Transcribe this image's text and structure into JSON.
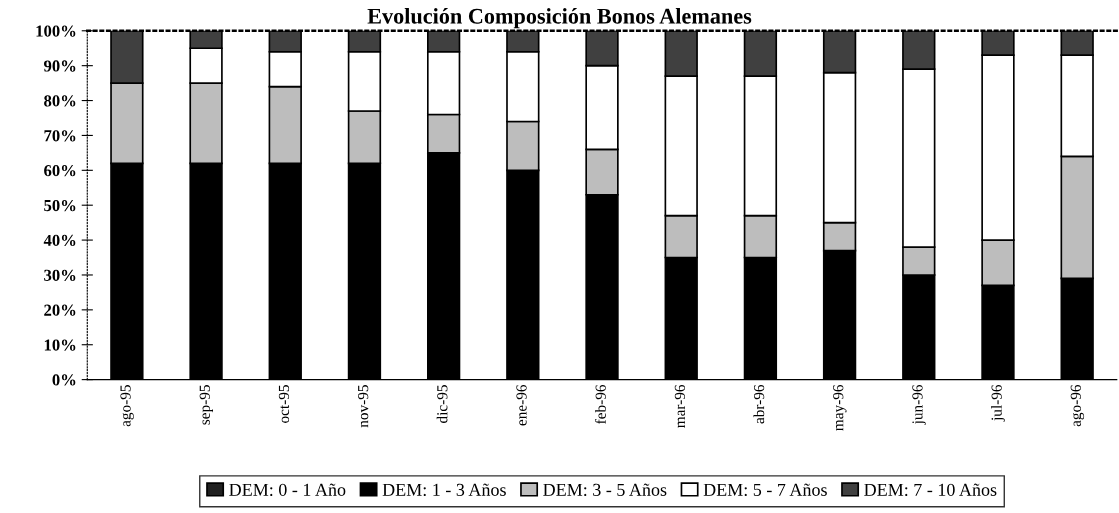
{
  "chart_data": {
    "type": "bar",
    "stacked": true,
    "title": "Evolución Composición Bonos Alemanes",
    "categories": [
      "ago-95",
      "sep-95",
      "oct-95",
      "nov-95",
      "dic-95",
      "ene-96",
      "feb-96",
      "mar-96",
      "abr-96",
      "may-96",
      "jun-96",
      "jul-96",
      "ago-96"
    ],
    "series": [
      {
        "name": "DEM: 0 - 1 Año",
        "color": "#202020",
        "values": [
          0,
          0,
          0,
          0,
          0,
          0,
          0,
          0,
          0,
          0,
          0,
          0,
          0
        ]
      },
      {
        "name": "DEM: 1 - 3 Años",
        "color": "#000000",
        "values": [
          62,
          62,
          62,
          62,
          65,
          60,
          53,
          35,
          35,
          37,
          30,
          27,
          29
        ]
      },
      {
        "name": "DEM: 3 - 5 Años",
        "color": "#bdbdbd",
        "values": [
          23,
          23,
          22,
          15,
          11,
          14,
          13,
          12,
          12,
          8,
          8,
          13,
          35
        ]
      },
      {
        "name": "DEM: 5 - 7 Años",
        "color": "#ffffff",
        "values": [
          0,
          10,
          10,
          17,
          18,
          20,
          24,
          40,
          40,
          43,
          51,
          53,
          29
        ]
      },
      {
        "name": "DEM: 7 - 10 Años",
        "color": "#404040",
        "values": [
          15,
          5,
          6,
          6,
          6,
          6,
          10,
          13,
          13,
          12,
          11,
          7,
          7
        ]
      }
    ],
    "ylim": [
      0,
      100
    ],
    "yticks": [
      {
        "value": 0,
        "label": "0%"
      },
      {
        "value": 10,
        "label": "10%"
      },
      {
        "value": 20,
        "label": "20%"
      },
      {
        "value": 30,
        "label": "30%"
      },
      {
        "value": 40,
        "label": "40%"
      },
      {
        "value": 50,
        "label": "50%"
      },
      {
        "value": 60,
        "label": "60%"
      },
      {
        "value": 70,
        "label": "70%"
      },
      {
        "value": 80,
        "label": "80%"
      },
      {
        "value": 90,
        "label": "90%"
      },
      {
        "value": 100,
        "label": "100%"
      }
    ],
    "grid": false,
    "legend": "bottom"
  }
}
